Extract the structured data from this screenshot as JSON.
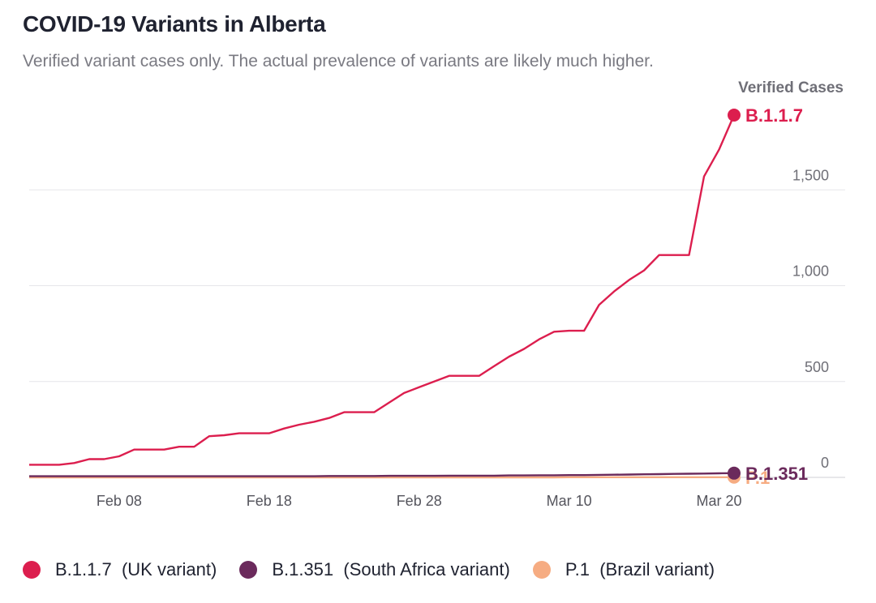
{
  "title": "COVID-19 Variants in Alberta",
  "subtitle": "Verified variant cases only. The actual prevalence of variants are likely much higher.",
  "chart_data": {
    "type": "line",
    "ylabel": "Verified Cases",
    "xlabel": "",
    "ylim": [
      0,
      1900
    ],
    "yticks": [
      0,
      500,
      1000,
      1500
    ],
    "ytick_labels": [
      "0",
      "500",
      "1,000",
      "1,500"
    ],
    "xticks": [
      "Feb 08",
      "Feb 18",
      "Feb 28",
      "Mar 10",
      "Mar 20"
    ],
    "x_start": "Feb 02",
    "x_end": "Mar 21",
    "grid": true,
    "series": [
      {
        "name": "B.1.1.7",
        "legend_label": "B.1.1.7  (UK variant)",
        "end_label": "B.1.1.7",
        "color": "#dc1e4e",
        "values": [
          66,
          66,
          66,
          75,
          95,
          95,
          110,
          145,
          145,
          145,
          160,
          160,
          215,
          220,
          230,
          230,
          230,
          255,
          275,
          290,
          310,
          340,
          340,
          340,
          390,
          440,
          470,
          500,
          530,
          530,
          530,
          580,
          630,
          670,
          720,
          760,
          765,
          765,
          900,
          970,
          1030,
          1080,
          1160,
          1160,
          1160,
          1570,
          1710,
          1890
        ]
      },
      {
        "name": "B.1.351",
        "legend_label": "B.1.351  (South Africa variant)",
        "end_label": "B.1.351",
        "color": "#6b2a5c",
        "values": [
          6,
          6,
          6,
          6,
          6,
          6,
          6,
          6,
          6,
          6,
          6,
          6,
          6,
          6,
          6,
          6,
          6,
          6,
          6,
          6,
          7,
          7,
          7,
          7,
          8,
          8,
          8,
          8,
          9,
          9,
          9,
          9,
          10,
          10,
          11,
          11,
          12,
          12,
          13,
          14,
          15,
          16,
          17,
          18,
          19,
          20,
          21,
          22
        ]
      },
      {
        "name": "P.1",
        "legend_label": "P.1  (Brazil variant)",
        "end_label": "P.1",
        "color": "#f6ac82",
        "values": [
          0,
          0,
          0,
          0,
          0,
          0,
          0,
          0,
          0,
          0,
          0,
          0,
          0,
          0,
          0,
          0,
          0,
          0,
          0,
          0,
          0,
          0,
          0,
          0,
          0,
          0,
          0,
          0,
          0,
          0,
          0,
          0,
          0,
          0,
          0,
          0,
          1,
          1,
          1,
          1,
          1,
          1,
          1,
          1,
          1,
          1,
          1,
          1
        ]
      }
    ]
  }
}
